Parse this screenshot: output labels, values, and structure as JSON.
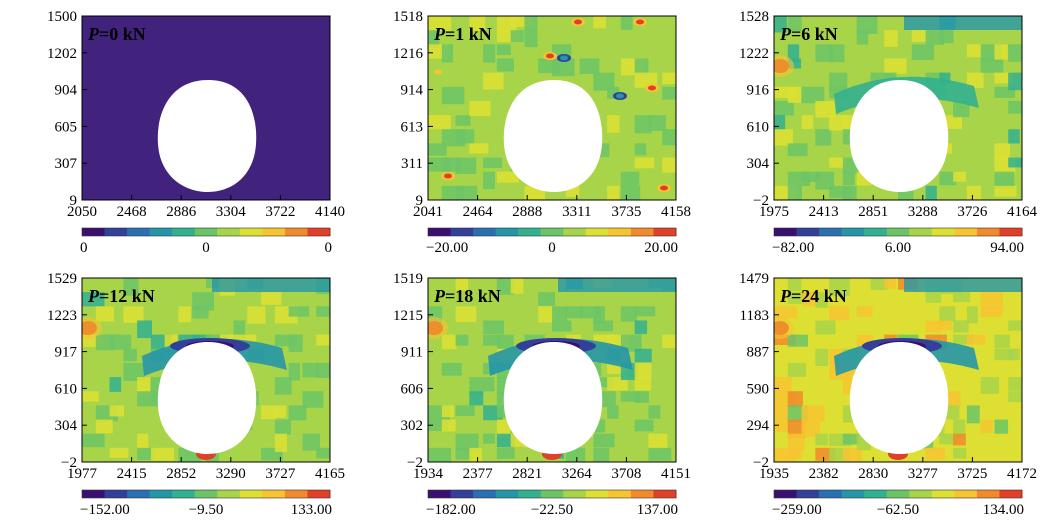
{
  "figure": {
    "panels": [
      {
        "id": "p0",
        "label_prefix": "P",
        "label_rest": "=0 kN",
        "y_ticks": [
          "1500",
          "1202",
          "904",
          "605",
          "307",
          "9"
        ],
        "x_ticks": [
          "2050",
          "2468",
          "2886",
          "3304",
          "3722",
          "4140"
        ],
        "cbar_ticks": [
          "0",
          "0",
          "0"
        ]
      },
      {
        "id": "p1",
        "label_prefix": "P",
        "label_rest": "=1 kN",
        "y_ticks": [
          "1518",
          "1216",
          "914",
          "613",
          "311",
          "9"
        ],
        "x_ticks": [
          "2041",
          "2464",
          "2888",
          "3311",
          "3735",
          "4158"
        ],
        "cbar_ticks": [
          "−20.00",
          "0",
          "20.00"
        ]
      },
      {
        "id": "p6",
        "label_prefix": "P",
        "label_rest": "=6 kN",
        "y_ticks": [
          "1528",
          "1222",
          "916",
          "610",
          "304",
          "−2"
        ],
        "x_ticks": [
          "1975",
          "2413",
          "2851",
          "3288",
          "3726",
          "4164"
        ],
        "cbar_ticks": [
          "−82.00",
          "6.00",
          "94.00"
        ]
      },
      {
        "id": "p12",
        "label_prefix": "P",
        "label_rest": "=12 kN",
        "y_ticks": [
          "1529",
          "1223",
          "917",
          "610",
          "304",
          "−2"
        ],
        "x_ticks": [
          "1977",
          "2415",
          "2852",
          "3290",
          "3727",
          "4165"
        ],
        "cbar_ticks": [
          "−152.00",
          "−9.50",
          "133.00"
        ]
      },
      {
        "id": "p18",
        "label_prefix": "P",
        "label_rest": "=18 kN",
        "y_ticks": [
          "1519",
          "1215",
          "911",
          "606",
          "302",
          "−2"
        ],
        "x_ticks": [
          "1934",
          "2377",
          "2821",
          "3264",
          "3708",
          "4151"
        ],
        "cbar_ticks": [
          "−182.00",
          "−22.50",
          "137.00"
        ]
      },
      {
        "id": "p24",
        "label_prefix": "P",
        "label_rest": "=24 kN",
        "y_ticks": [
          "1479",
          "1183",
          "887",
          "590",
          "294",
          "−2"
        ],
        "x_ticks": [
          "1935",
          "2382",
          "2830",
          "3277",
          "3725",
          "4172"
        ],
        "cbar_ticks": [
          "−259.00",
          "−62.50",
          "134.00"
        ]
      }
    ]
  },
  "chart_data": [
    {
      "type": "heatmap",
      "label": "P=0 kN",
      "xlim": [
        2050,
        4140
      ],
      "ylim": [
        9,
        1500
      ],
      "color_range": [
        0,
        0
      ]
    },
    {
      "type": "heatmap",
      "label": "P=1 kN",
      "xlim": [
        2041,
        4158
      ],
      "ylim": [
        9,
        1518
      ],
      "color_range": [
        -20.0,
        20.0
      ]
    },
    {
      "type": "heatmap",
      "label": "P=6 kN",
      "xlim": [
        1975,
        4164
      ],
      "ylim": [
        -2,
        1528
      ],
      "color_range": [
        -82.0,
        94.0
      ]
    },
    {
      "type": "heatmap",
      "label": "P=12 kN",
      "xlim": [
        1977,
        4165
      ],
      "ylim": [
        -2,
        1529
      ],
      "color_range": [
        -152.0,
        133.0
      ]
    },
    {
      "type": "heatmap",
      "label": "P=18 kN",
      "xlim": [
        1934,
        4151
      ],
      "ylim": [
        -2,
        1519
      ],
      "color_range": [
        -182.0,
        137.0
      ]
    },
    {
      "type": "heatmap",
      "label": "P=24 kN",
      "xlim": [
        1935,
        4172
      ],
      "ylim": [
        -2,
        1479
      ],
      "color_range": [
        -259.0,
        134.0
      ]
    }
  ],
  "colors": {
    "palette": [
      "#3b0f70",
      "#33409a",
      "#2a6fb0",
      "#2596a8",
      "#33b08f",
      "#6cc466",
      "#a8d44a",
      "#dde033",
      "#f7c431",
      "#f08a2c",
      "#e0402a"
    ],
    "background": "#41237e",
    "hole": "#ffffff"
  }
}
